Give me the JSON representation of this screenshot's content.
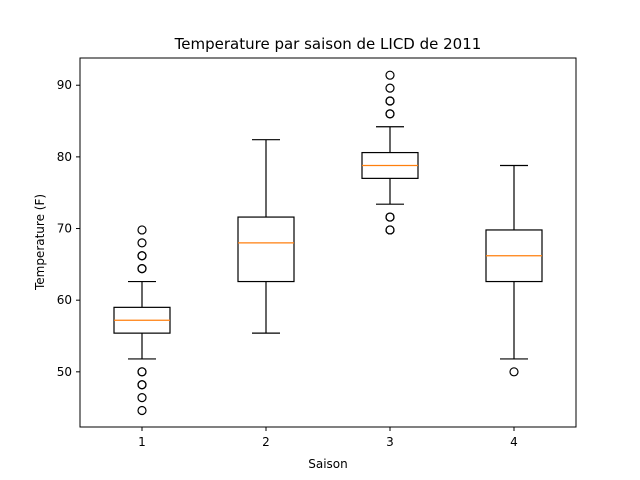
{
  "chart_data": {
    "type": "boxplot",
    "title": "Temperature par saison de LICD de 2011",
    "xlabel": "Saison",
    "ylabel": "Temperature (F)",
    "categories": [
      "1",
      "2",
      "3",
      "4"
    ],
    "ylim": [
      42.3,
      93.8
    ],
    "yticks": [
      50,
      60,
      70,
      80,
      90
    ],
    "grid": false,
    "colors": {
      "box": "#000000",
      "median": "#ff7f0e",
      "axes": "#000000"
    },
    "boxes": [
      {
        "category": "1",
        "whisker_low": 51.8,
        "q1": 55.4,
        "median": 57.2,
        "q3": 59.0,
        "whisker_high": 62.6,
        "outliers": [
          44.6,
          46.4,
          48.2,
          48.2,
          50.0,
          50.0,
          64.4,
          64.4,
          66.2,
          66.2,
          68.0,
          69.8
        ]
      },
      {
        "category": "2",
        "whisker_low": 55.4,
        "q1": 62.6,
        "median": 68.0,
        "q3": 71.6,
        "whisker_high": 82.4,
        "outliers": []
      },
      {
        "category": "3",
        "whisker_low": 73.4,
        "q1": 77.0,
        "median": 78.8,
        "q3": 80.6,
        "whisker_high": 84.2,
        "outliers": [
          69.8,
          69.8,
          71.6,
          71.6,
          86.0,
          86.0,
          87.8,
          87.8,
          89.6,
          91.4
        ]
      },
      {
        "category": "4",
        "whisker_low": 51.8,
        "q1": 62.6,
        "median": 66.2,
        "q3": 69.8,
        "whisker_high": 78.8,
        "outliers": [
          50.0
        ]
      }
    ]
  }
}
